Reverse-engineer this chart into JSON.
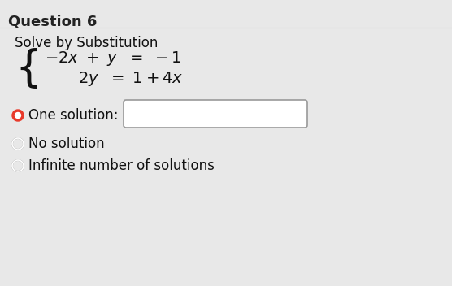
{
  "title": "Question 6",
  "subtitle": "Solve by Substitution",
  "eq1": "$-2x + y = -1$",
  "eq2": "$2y = 1 + 4x$",
  "option1_label": "One solution:",
  "option2_label": "No solution",
  "option3_label": "Infinite number of solutions",
  "bg_color": "#e8e8e8",
  "title_color": "#222222",
  "radio_filled_color": "#e8392a",
  "radio_empty_color": "#aaaaaa",
  "box_color": "#ffffff",
  "box_border_color": "#999999",
  "text_color": "#111111"
}
